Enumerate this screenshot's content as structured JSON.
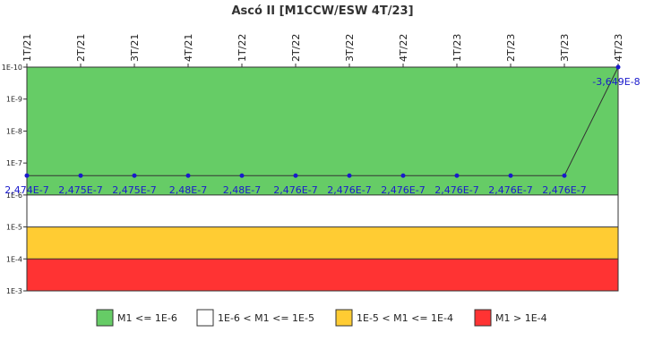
{
  "chart_data": {
    "type": "line",
    "title": "Ascó II [M1CCW/ESW 4T/23]",
    "y_scale": "log",
    "y_reversed": true,
    "y_ticks": [
      "1E-10",
      "1E-9",
      "1E-8",
      "1E-7",
      "1E-6",
      "1E-5",
      "1E-4",
      "1E-3"
    ],
    "categories": [
      "1T/21",
      "2T/21",
      "3T/21",
      "4T/21",
      "1T/22",
      "2T/22",
      "3T/22",
      "4T/22",
      "1T/23",
      "2T/23",
      "3T/23",
      "4T/23"
    ],
    "series": [
      {
        "values": [
          2.474e-07,
          2.475e-07,
          2.475e-07,
          2.48e-07,
          2.48e-07,
          2.476e-07,
          2.476e-07,
          2.476e-07,
          2.476e-07,
          2.476e-07,
          2.476e-07,
          -3.649e-08
        ],
        "labels": [
          "2,474E-7",
          "2,475E-7",
          "2,475E-7",
          "2,48E-7",
          "2,48E-7",
          "2,476E-7",
          "2,476E-7",
          "2,476E-7",
          "2,476E-7",
          "2,476E-7",
          "2,476E-7",
          "-3,649E-8"
        ],
        "color": "#1a1acc"
      }
    ],
    "bands": [
      {
        "label": "M1 <= 1E-6",
        "color": "#66cc66"
      },
      {
        "label": "1E-6 < M1 <= 1E-5",
        "color": "#ffffff"
      },
      {
        "label": "1E-5 < M1 <= 1E-4",
        "color": "#ffcc33"
      },
      {
        "label": "M1 > 1E-4",
        "color": "#ff3333"
      }
    ],
    "grid": false,
    "legend_position": "bottom"
  }
}
